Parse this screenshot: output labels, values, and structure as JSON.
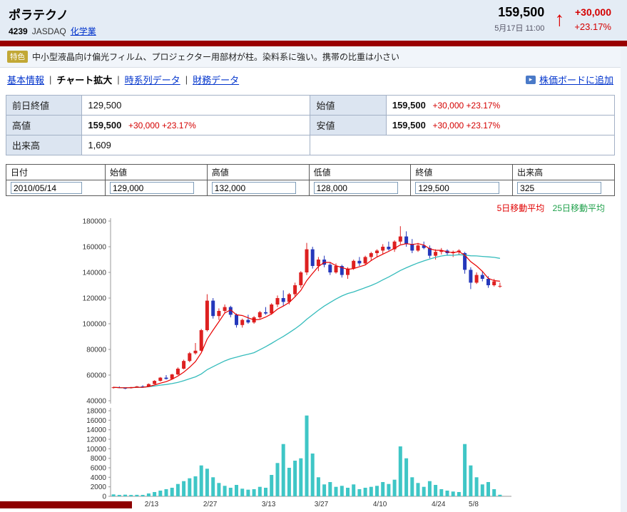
{
  "header": {
    "stock_name": "ポラテクノ",
    "code": "4239",
    "market": "JASDAQ",
    "industry": "化学業",
    "price": "159,500",
    "datetime": "5月17日 11:00",
    "change": "+30,000",
    "change_pct": "+23.17%"
  },
  "icons": {
    "up_arrow": "↑",
    "add_board_glyph": "▸"
  },
  "feature": {
    "badge": "特色",
    "text": "中小型液晶向け偏光フィルム、プロジェクター用部材が柱。染料系に強い。携帯の比重は小さい"
  },
  "nav": {
    "separator": "|",
    "items": [
      {
        "label": "基本情報"
      },
      {
        "label": "チャート拡大"
      },
      {
        "label": "時系列データ"
      },
      {
        "label": "財務データ"
      }
    ],
    "add_board": "株価ボードに追加"
  },
  "quote_table": {
    "prev_close_label": "前日終値",
    "prev_close": "129,500",
    "open_label": "始値",
    "open": "159,500",
    "open_change": "+30,000 +23.17%",
    "high_label": "高値",
    "high": "159,500",
    "high_change": "+30,000 +23.17%",
    "low_label": "安値",
    "low": "159,500",
    "low_change": "+30,000 +23.17%",
    "volume_label": "出来高",
    "volume": "1,609"
  },
  "input_table": {
    "headers": [
      "日付",
      "始値",
      "高値",
      "低値",
      "終値",
      "出来高"
    ],
    "values": [
      "2010/05/14",
      "129,000",
      "132,000",
      "128,000",
      "129,500",
      "325"
    ]
  },
  "legend": {
    "ma5": "5日移動平均",
    "ma25": "25日移動平均"
  },
  "chart_data": {
    "type": "candlestick",
    "fields": [
      "date",
      "open",
      "high",
      "low",
      "close",
      "volume"
    ],
    "price_axis": {
      "min": 40000,
      "max": 180000,
      "tick": 20000
    },
    "volume_axis": {
      "min": 0,
      "max": 18000,
      "tick": 2000
    },
    "x_tick_labels": [
      {
        "label": "2/13",
        "boundary": 7
      },
      {
        "label": "2/27",
        "boundary": 17
      },
      {
        "label": "3/13",
        "boundary": 27
      },
      {
        "label": "3/27",
        "boundary": 36
      },
      {
        "label": "4/10",
        "boundary": 46
      },
      {
        "label": "4/24",
        "boundary": 56
      },
      {
        "label": "5/8",
        "boundary": 62
      }
    ],
    "ma_series": [
      {
        "name": "5日移動平均",
        "period": 5
      },
      {
        "name": "25日移動平均",
        "period": 25
      }
    ],
    "colors": {
      "up": "#dd2020",
      "down": "#2538bb",
      "volume": "#3fc6c6",
      "ma5_line": "#e80000",
      "ma25_line": "#35bcbc",
      "ma5_label": "#e00000",
      "ma25_label": "#1ea04a"
    },
    "candles": [
      [
        "2/3",
        50000,
        51000,
        49500,
        50500,
        400
      ],
      [
        "2/4",
        50500,
        51200,
        49800,
        50000,
        300
      ],
      [
        "2/5",
        50000,
        50500,
        49000,
        49800,
        350
      ],
      [
        "2/8",
        49800,
        50800,
        49500,
        50600,
        280
      ],
      [
        "2/9",
        50600,
        51500,
        50200,
        51200,
        320
      ],
      [
        "2/10",
        51200,
        52000,
        50800,
        51000,
        300
      ],
      [
        "2/12",
        51000,
        53500,
        50900,
        53000,
        600
      ],
      [
        "2/15",
        53000,
        56000,
        52800,
        55500,
        900
      ],
      [
        "2/16",
        55500,
        58500,
        55000,
        58000,
        1200
      ],
      [
        "2/17",
        58000,
        60000,
        56500,
        57000,
        1500
      ],
      [
        "2/18",
        57000,
        61000,
        56800,
        60500,
        1800
      ],
      [
        "2/19",
        60500,
        66000,
        60000,
        65000,
        2600
      ],
      [
        "2/22",
        65000,
        72000,
        64500,
        71000,
        3200
      ],
      [
        "2/23",
        71000,
        78000,
        70000,
        77000,
        3800
      ],
      [
        "2/24",
        77000,
        85000,
        76000,
        79000,
        4200
      ],
      [
        "2/25",
        79000,
        96000,
        78500,
        95000,
        6500
      ],
      [
        "2/26",
        95000,
        123000,
        94000,
        118000,
        5800
      ],
      [
        "3/1",
        118000,
        120000,
        104000,
        106000,
        4000
      ],
      [
        "3/2",
        106000,
        112000,
        103000,
        110000,
        2800
      ],
      [
        "3/3",
        110000,
        115000,
        108000,
        113000,
        2200
      ],
      [
        "3/4",
        113000,
        114000,
        105000,
        107000,
        1800
      ],
      [
        "3/5",
        107000,
        108000,
        97000,
        99000,
        2400
      ],
      [
        "3/8",
        99000,
        104000,
        97000,
        103000,
        1600
      ],
      [
        "3/9",
        103000,
        107000,
        100000,
        101000,
        1400
      ],
      [
        "3/10",
        101000,
        106000,
        100000,
        105000,
        1500
      ],
      [
        "3/11",
        105000,
        110000,
        104000,
        109000,
        2000
      ],
      [
        "3/12",
        109000,
        113000,
        107000,
        108000,
        1800
      ],
      [
        "3/15",
        108000,
        116000,
        107000,
        115000,
        4500
      ],
      [
        "3/16",
        115000,
        122000,
        113000,
        120000,
        7000
      ],
      [
        "3/17",
        120000,
        126000,
        114000,
        117000,
        11000
      ],
      [
        "3/18",
        117000,
        124000,
        115000,
        123000,
        6000
      ],
      [
        "3/19",
        123000,
        132000,
        121000,
        130000,
        7500
      ],
      [
        "3/23",
        130000,
        141000,
        128000,
        140000,
        8000
      ],
      [
        "3/24",
        140000,
        163000,
        138000,
        158000,
        17000
      ],
      [
        "3/25",
        158000,
        160000,
        143000,
        145000,
        9000
      ],
      [
        "3/26",
        145000,
        152000,
        141000,
        150000,
        4000
      ],
      [
        "3/29",
        150000,
        153000,
        144000,
        146000,
        2500
      ],
      [
        "3/30",
        146000,
        148000,
        138000,
        140000,
        3000
      ],
      [
        "3/31",
        140000,
        147000,
        139000,
        145000,
        2000
      ],
      [
        "4/1",
        145000,
        146000,
        136000,
        138000,
        2200
      ],
      [
        "4/2",
        138000,
        144000,
        135000,
        143000,
        1800
      ],
      [
        "4/5",
        143000,
        150000,
        142000,
        149000,
        2500
      ],
      [
        "4/6",
        149000,
        152000,
        145000,
        147000,
        1500
      ],
      [
        "4/7",
        147000,
        153000,
        146000,
        152000,
        1800
      ],
      [
        "4/8",
        152000,
        156000,
        149000,
        155000,
        2000
      ],
      [
        "4/9",
        155000,
        158000,
        152000,
        157000,
        2200
      ],
      [
        "4/12",
        157000,
        162000,
        154000,
        160000,
        3000
      ],
      [
        "4/13",
        160000,
        164000,
        157000,
        158000,
        2600
      ],
      [
        "4/14",
        158000,
        165000,
        156000,
        164000,
        3500
      ],
      [
        "4/15",
        164000,
        176000,
        162000,
        168000,
        10500
      ],
      [
        "4/16",
        168000,
        172000,
        160000,
        162000,
        8000
      ],
      [
        "4/19",
        162000,
        166000,
        155000,
        157000,
        4000
      ],
      [
        "4/20",
        157000,
        163000,
        156000,
        161000,
        2800
      ],
      [
        "4/21",
        161000,
        164000,
        158000,
        159000,
        2000
      ],
      [
        "4/22",
        159000,
        161000,
        151000,
        153000,
        3200
      ],
      [
        "4/23",
        153000,
        158000,
        150000,
        156000,
        2400
      ],
      [
        "4/26",
        156000,
        159000,
        154000,
        157000,
        1500
      ],
      [
        "4/27",
        157000,
        158000,
        153000,
        155000,
        1200
      ],
      [
        "4/28",
        155000,
        157000,
        152000,
        156000,
        1000
      ],
      [
        "4/30",
        156000,
        158000,
        154000,
        157000,
        900
      ],
      [
        "5/6",
        155000,
        156000,
        139000,
        142000,
        11000
      ],
      [
        "5/7",
        142000,
        144000,
        127000,
        132000,
        6500
      ],
      [
        "5/10",
        132000,
        140000,
        131000,
        138000,
        4000
      ],
      [
        "5/11",
        138000,
        141000,
        133000,
        135000,
        2500
      ],
      [
        "5/12",
        135000,
        137000,
        128000,
        130000,
        3000
      ],
      [
        "5/13",
        130000,
        135000,
        129000,
        133000,
        1500
      ],
      [
        "5/14",
        129000,
        132000,
        128000,
        129500,
        325
      ]
    ]
  }
}
